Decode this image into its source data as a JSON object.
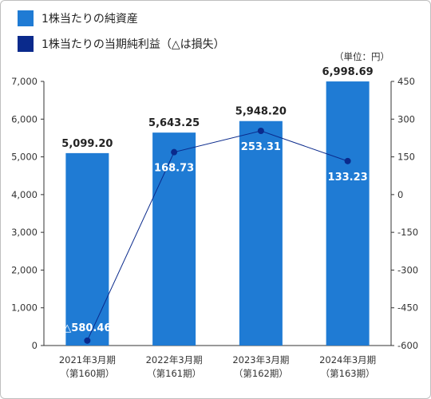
{
  "legend": [
    {
      "label": "1株当たりの純資産",
      "color": "#1f7bd4"
    },
    {
      "label": "1株当たりの当期純利益（△は損失）",
      "color": "#0a2a8c"
    }
  ],
  "unit_label": "（単位：円）",
  "chart_data": {
    "type": "bar",
    "categories": [
      [
        "2021年3月期",
        "（第160期）"
      ],
      [
        "2022年3月期",
        "（第161期）"
      ],
      [
        "2023年3月期",
        "（第162期）"
      ],
      [
        "2024年3月期",
        "（第163期）"
      ]
    ],
    "series": [
      {
        "name": "1株当たりの純資産",
        "type": "bar",
        "axis": "left",
        "values": [
          5099.2,
          5643.25,
          5948.2,
          6998.69
        ],
        "labels": [
          "5,099.20",
          "5,643.25",
          "5,948.20",
          "6,998.69"
        ],
        "color": "#1f7bd4"
      },
      {
        "name": "1株当たりの当期純利益（△は損失）",
        "type": "line",
        "axis": "right",
        "values": [
          -580.46,
          168.73,
          253.31,
          133.23
        ],
        "labels": [
          "△580.46",
          "168.73",
          "253.31",
          "133.23"
        ],
        "color": "#0a2a8c"
      }
    ],
    "y_left": {
      "min": 0,
      "max": 7000,
      "ticks": [
        0,
        1000,
        2000,
        3000,
        4000,
        5000,
        6000,
        7000
      ],
      "tick_labels": [
        "0",
        "1,000",
        "2,000",
        "3,000",
        "4,000",
        "5,000",
        "6,000",
        "7,000"
      ]
    },
    "y_right": {
      "min": -600,
      "max": 450,
      "ticks": [
        -600,
        -450,
        -300,
        -150,
        0,
        150,
        300,
        450
      ],
      "tick_labels": [
        "-600",
        "-450",
        "-300",
        "-150",
        "0",
        "150",
        "300",
        "450"
      ]
    },
    "grid": false,
    "legend_position": "top-left"
  }
}
